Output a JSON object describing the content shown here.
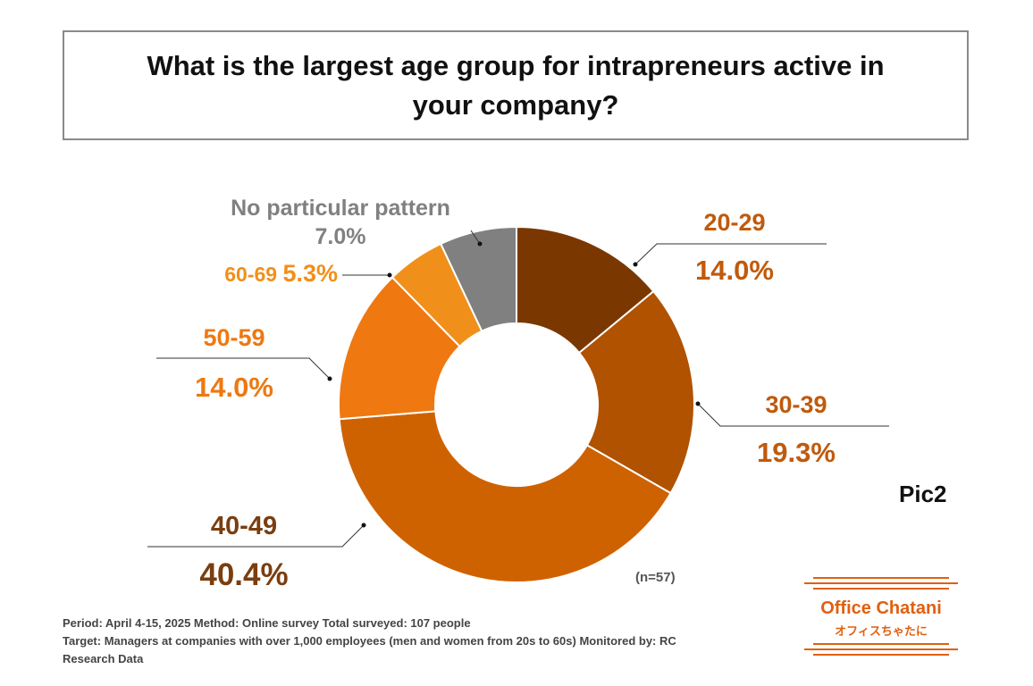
{
  "chart_data": {
    "type": "pie",
    "variant": "donut",
    "title": "What is the largest age group for intrapreneurs active in your company?",
    "slices": [
      {
        "label": "20-29",
        "value": 14.0,
        "display": "14.0%",
        "color": "#7a3800",
        "label_color": "#c05a0c"
      },
      {
        "label": "30-39",
        "value": 19.3,
        "display": "19.3%",
        "color": "#b05200",
        "label_color": "#c05a0c"
      },
      {
        "label": "40-49",
        "value": 40.4,
        "display": "40.4%",
        "color": "#cf6200",
        "label_color": "#7a3e10"
      },
      {
        "label": "50-59",
        "value": 14.0,
        "display": "14.0%",
        "color": "#ef7810",
        "label_color": "#ef7810"
      },
      {
        "label": "60-69",
        "value": 5.3,
        "display": "5.3%",
        "color": "#f0901a",
        "label_color": "#f0901a"
      },
      {
        "label": "No particular pattern",
        "value": 7.0,
        "display": "7.0%",
        "color": "#808080",
        "label_color": "#808080"
      }
    ],
    "sample_size": "(n=57)"
  },
  "annotation": "Pic2",
  "footnote": {
    "line1": "Period: April 4-15, 2025 Method: Online survey Total surveyed: 107 people",
    "line2": "Target: Managers at companies with over 1,000 employees (men and women from 20s to 60s) Monitored by: RC",
    "line3": "Research Data"
  },
  "logo": {
    "name": "Office Chatani",
    "name_jp": "オフィスちゃたに",
    "color": "#e06010"
  }
}
